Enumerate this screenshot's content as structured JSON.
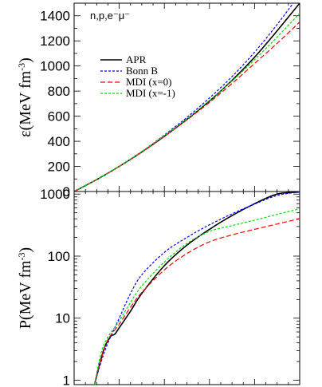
{
  "chart_data": [
    {
      "type": "line",
      "panel": "top",
      "ylabel": "ε(MeV fm⁻³)",
      "ylabel_parts": {
        "main": "ε(MeV fm",
        "exp": "-3",
        "close": ")"
      },
      "annotation": "n,p,e⁻μ⁻",
      "yscale": "linear",
      "ylim": [
        0,
        1500
      ],
      "yticks": [
        0,
        200,
        400,
        600,
        800,
        1000,
        1200,
        1400
      ],
      "xlim": [
        0,
        1
      ],
      "grid": false,
      "legend_placement": "upper-left",
      "series": [
        {
          "name": "APR",
          "color": "#000000",
          "dash": "",
          "x": [
            0,
            0.1,
            0.2,
            0.3,
            0.4,
            0.5,
            0.6,
            0.7,
            0.8,
            0.9,
            1.0
          ],
          "y": [
            0,
            95,
            200,
            315,
            440,
            575,
            720,
            885,
            1070,
            1280,
            1500
          ]
        },
        {
          "name": "Bonn B",
          "color": "#0000ff",
          "dash": "3,2",
          "x": [
            0,
            0.1,
            0.2,
            0.3,
            0.4,
            0.5,
            0.6,
            0.7,
            0.8,
            0.9,
            1.0
          ],
          "y": [
            0,
            95,
            200,
            318,
            450,
            590,
            745,
            915,
            1110,
            1330,
            1570
          ]
        },
        {
          "name": "MDI (x=0)",
          "color": "#ff0000",
          "dash": "6,3",
          "x": [
            0,
            0.1,
            0.2,
            0.3,
            0.4,
            0.5,
            0.6,
            0.7,
            0.8,
            0.9,
            1.0
          ],
          "y": [
            0,
            95,
            200,
            315,
            440,
            570,
            710,
            860,
            1020,
            1180,
            1350
          ]
        },
        {
          "name": "MDI (x=-1)",
          "color": "#00dd00",
          "dash": "3,2",
          "x": [
            0,
            0.1,
            0.2,
            0.3,
            0.4,
            0.5,
            0.6,
            0.7,
            0.8,
            0.9,
            1.0
          ],
          "y": [
            0,
            95,
            200,
            318,
            445,
            578,
            725,
            880,
            1050,
            1230,
            1420
          ]
        }
      ]
    },
    {
      "type": "line",
      "panel": "bottom",
      "ylabel": "P(MeV fm⁻³)",
      "ylabel_parts": {
        "main": "P(MeV fm",
        "exp": "-3",
        "close": ")"
      },
      "yscale": "log",
      "ylim": [
        0.85,
        1100
      ],
      "yticks": [
        1,
        10,
        100,
        1000
      ],
      "yticklabels": [
        "1",
        "10",
        "100",
        "1000"
      ],
      "xlim": [
        0,
        1
      ],
      "grid": false,
      "series": [
        {
          "name": "APR",
          "color": "#000000",
          "dash": "",
          "x": [
            0.09,
            0.13,
            0.16,
            0.18,
            0.2,
            0.25,
            0.3,
            0.4,
            0.5,
            0.6,
            0.7,
            0.8,
            0.9,
            1.0
          ],
          "y": [
            0.85,
            3.0,
            5.0,
            5.5,
            7.0,
            13,
            25,
            70,
            150,
            270,
            450,
            700,
            1000,
            1080
          ]
        },
        {
          "name": "Bonn B",
          "color": "#0000ff",
          "dash": "3,2",
          "x": [
            0.09,
            0.12,
            0.15,
            0.2,
            0.25,
            0.3,
            0.4,
            0.5,
            0.6,
            0.7,
            0.8,
            0.9,
            1.0
          ],
          "y": [
            0.85,
            2.0,
            4.0,
            10,
            25,
            50,
            115,
            200,
            320,
            480,
            690,
            950,
            1080
          ]
        },
        {
          "name": "MDI (x=0)",
          "color": "#ff0000",
          "dash": "6,3",
          "x": [
            0.09,
            0.12,
            0.15,
            0.2,
            0.25,
            0.3,
            0.4,
            0.5,
            0.6,
            0.7,
            0.8,
            0.9,
            1.0
          ],
          "y": [
            0.85,
            2.2,
            4.5,
            8.0,
            15,
            26,
            60,
            110,
            170,
            220,
            270,
            330,
            400
          ]
        },
        {
          "name": "MDI (x=-1)",
          "color": "#00dd00",
          "dash": "3,2",
          "x": [
            0.09,
            0.12,
            0.15,
            0.2,
            0.25,
            0.3,
            0.4,
            0.5,
            0.6,
            0.7,
            0.8,
            0.9,
            1.0
          ],
          "y": [
            0.85,
            2.8,
            5.0,
            9.0,
            18,
            33,
            80,
            160,
            250,
            310,
            380,
            470,
            580
          ]
        }
      ]
    }
  ]
}
